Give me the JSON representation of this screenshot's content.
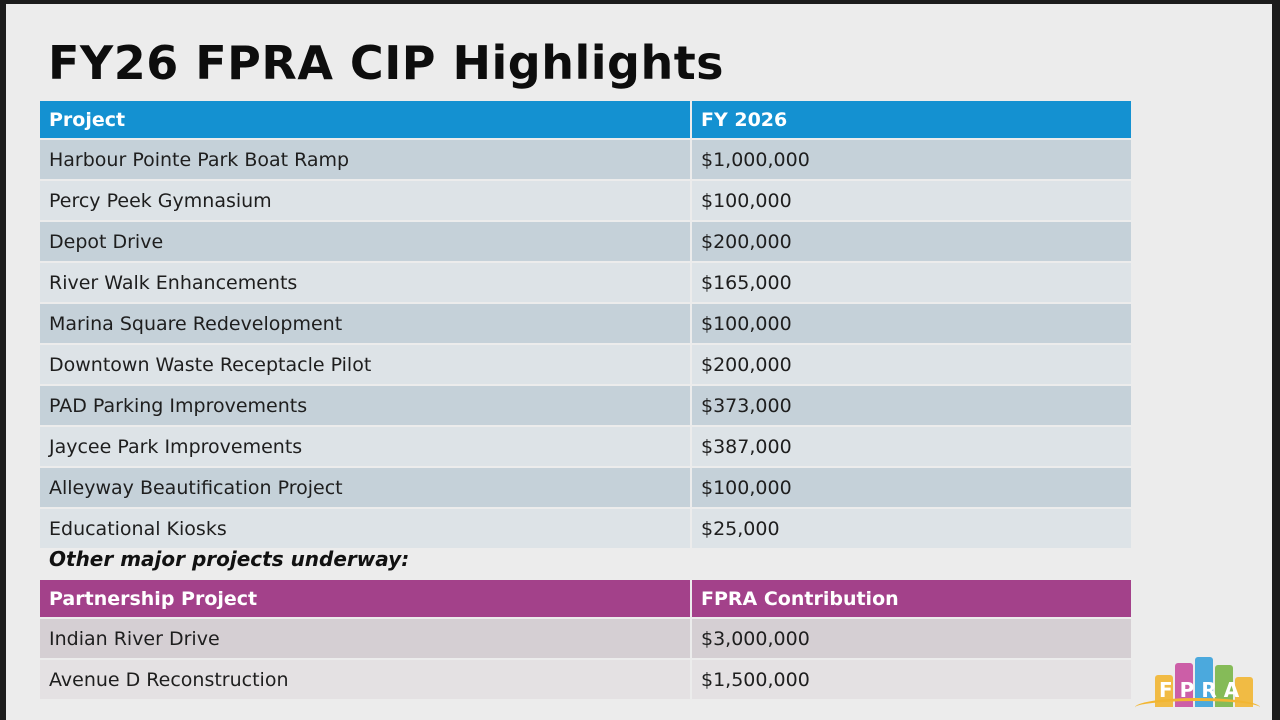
{
  "title": "FY26 FPRA CIP Highlights",
  "cip_table": {
    "headers": [
      "Project",
      "FY 2026"
    ],
    "rows": [
      [
        "Harbour Pointe Park Boat Ramp",
        "$1,000,000"
      ],
      [
        "Percy Peek Gymnasium",
        "$100,000"
      ],
      [
        "Depot Drive",
        "$200,000"
      ],
      [
        "River Walk Enhancements",
        "$165,000"
      ],
      [
        "Marina Square Redevelopment",
        "$100,000"
      ],
      [
        "Downtown Waste Receptacle Pilot",
        "$200,000"
      ],
      [
        "PAD Parking Improvements",
        "$373,000"
      ],
      [
        "Jaycee Park Improvements",
        "$387,000"
      ],
      [
        "Alleyway Beautification Project",
        "$100,000"
      ],
      [
        "Educational Kiosks",
        "$25,000"
      ]
    ]
  },
  "other_projects_heading": "Other major projects underway:",
  "partner_table": {
    "headers": [
      "Partnership Project",
      "FPRA Contribution"
    ],
    "rows": [
      [
        "Indian River Drive",
        "$3,000,000"
      ],
      [
        "Avenue D Reconstruction",
        "$1,500,000"
      ]
    ]
  },
  "logo_text": "FPRA",
  "colors": {
    "cip_header": "#1491d1",
    "partner_header": "#a3418a",
    "logo_bars": [
      "#f2b632",
      "#c94fa0",
      "#3aa2dc",
      "#7ab648",
      "#f2b632"
    ]
  }
}
